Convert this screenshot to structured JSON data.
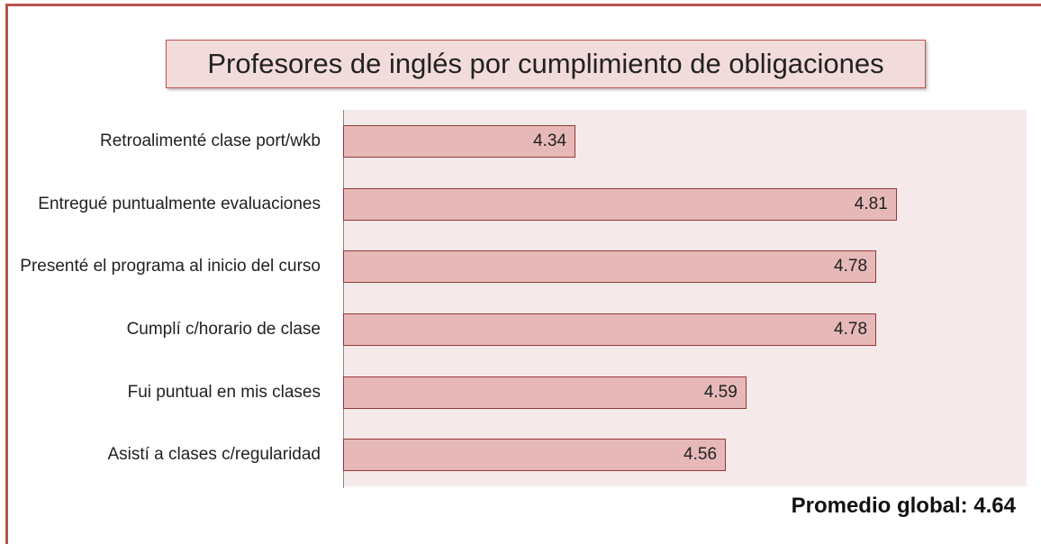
{
  "chart_data": {
    "type": "bar",
    "orientation": "horizontal",
    "title": "Profesores de inglés por cumplimiento de obligaciones",
    "categories": [
      "Retroalimenté clase port/wkb",
      "Entregué puntualmente evaluaciones",
      "Presenté el programa al inicio del curso",
      "Cumplí c/horario de clase",
      "Fui puntual en mis clases",
      "Asistí a clases c/regularidad"
    ],
    "values": [
      4.34,
      4.81,
      4.78,
      4.78,
      4.59,
      4.56
    ],
    "color": "#e6b9b8",
    "xlim": [
      4,
      5
    ],
    "annotation": "Promedio global: 4.64"
  }
}
